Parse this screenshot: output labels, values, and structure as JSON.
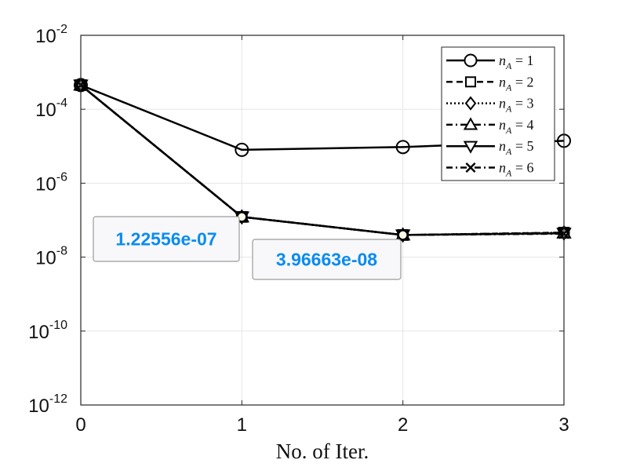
{
  "chart_data": {
    "type": "line",
    "xlabel": "No. of Iter.",
    "ylabel": "",
    "title": "",
    "x": [
      0,
      1,
      2,
      3
    ],
    "xlim": [
      0,
      3
    ],
    "ylim_exponent": [
      -12,
      -2
    ],
    "yscale": "log",
    "grid": true,
    "legend_position": "top-right",
    "x_ticks": [
      "0",
      "1",
      "2",
      "3"
    ],
    "y_ticks": [
      {
        "base": "10",
        "exp": "-2"
      },
      {
        "base": "10",
        "exp": "-4"
      },
      {
        "base": "10",
        "exp": "-6"
      },
      {
        "base": "10",
        "exp": "-8"
      },
      {
        "base": "10",
        "exp": "-10"
      },
      {
        "base": "10",
        "exp": "-12"
      }
    ],
    "series": [
      {
        "name": "n_A = 1",
        "var": "n",
        "sub": "A",
        "val": "1",
        "marker": "circle",
        "dash": "solid",
        "values": [
          0.00045,
          8e-06,
          9.5e-06,
          1.4e-05
        ]
      },
      {
        "name": "n_A = 2",
        "var": "n",
        "sub": "A",
        "val": "2",
        "marker": "square",
        "dash": "dash",
        "values": [
          0.00045,
          1.22556e-07,
          3.96663e-08,
          4.6e-08
        ]
      },
      {
        "name": "n_A = 3",
        "var": "n",
        "sub": "A",
        "val": "3",
        "marker": "diamond",
        "dash": "dot",
        "values": [
          0.00045,
          1.22556e-07,
          3.96663e-08,
          4.6e-08
        ]
      },
      {
        "name": "n_A = 4",
        "var": "n",
        "sub": "A",
        "val": "4",
        "marker": "triangle-up",
        "dash": "dashdot",
        "values": [
          0.00045,
          1.22556e-07,
          3.96663e-08,
          4.5e-08
        ]
      },
      {
        "name": "n_A = 5",
        "var": "n",
        "sub": "A",
        "val": "5",
        "marker": "triangle-down",
        "dash": "solid",
        "values": [
          0.00045,
          1.22556e-07,
          3.96663e-08,
          4.4e-08
        ]
      },
      {
        "name": "n_A = 6",
        "var": "n",
        "sub": "A",
        "val": "6",
        "marker": "x",
        "dash": "dashdot",
        "values": [
          0.00045,
          1.22556e-07,
          3.96663e-08,
          4.3e-08
        ]
      }
    ],
    "datatips": [
      {
        "text": "1.22556e-07",
        "x": 1,
        "y": 1.22556e-07
      },
      {
        "text": "3.96663e-08",
        "x": 2,
        "y": 3.96663e-08
      }
    ]
  }
}
